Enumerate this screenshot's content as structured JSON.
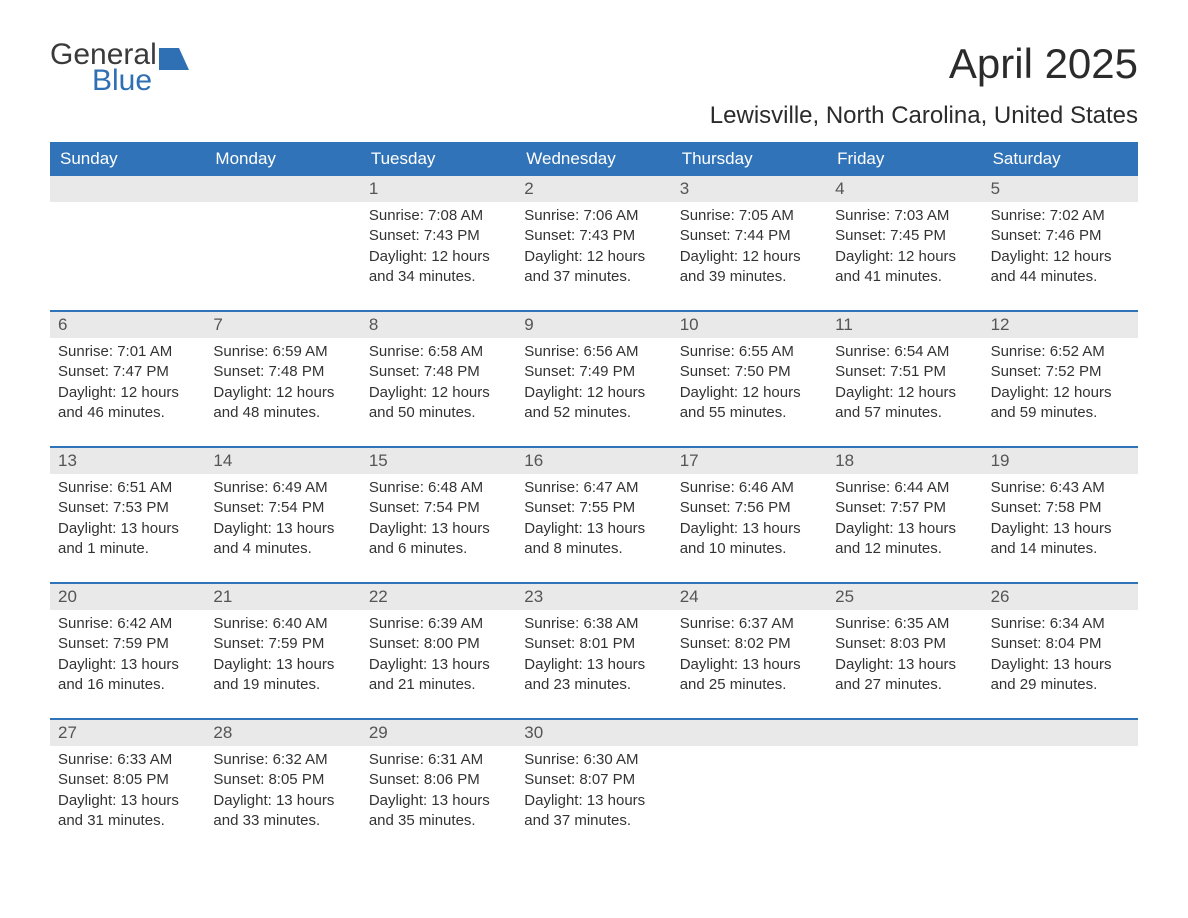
{
  "logo": {
    "line1": "General",
    "line2": "Blue",
    "mark_color": "#2f6fb3",
    "text_color": "#3a3a3a"
  },
  "title": "April 2025",
  "subtitle": "Lewisville, North Carolina, United States",
  "colors": {
    "header_bg": "#3173b8",
    "header_text": "#ffffff",
    "daynum_bg": "#e9e9e9",
    "daynum_text": "#555555",
    "body_text": "#333333",
    "rule": "#3173b8",
    "page_bg": "#ffffff"
  },
  "day_labels": [
    "Sunday",
    "Monday",
    "Tuesday",
    "Wednesday",
    "Thursday",
    "Friday",
    "Saturday"
  ],
  "weeks": [
    [
      {
        "n": "",
        "sr": "",
        "ss": "",
        "dl": ""
      },
      {
        "n": "",
        "sr": "",
        "ss": "",
        "dl": ""
      },
      {
        "n": "1",
        "sr": "Sunrise: 7:08 AM",
        "ss": "Sunset: 7:43 PM",
        "dl": "Daylight: 12 hours and 34 minutes."
      },
      {
        "n": "2",
        "sr": "Sunrise: 7:06 AM",
        "ss": "Sunset: 7:43 PM",
        "dl": "Daylight: 12 hours and 37 minutes."
      },
      {
        "n": "3",
        "sr": "Sunrise: 7:05 AM",
        "ss": "Sunset: 7:44 PM",
        "dl": "Daylight: 12 hours and 39 minutes."
      },
      {
        "n": "4",
        "sr": "Sunrise: 7:03 AM",
        "ss": "Sunset: 7:45 PM",
        "dl": "Daylight: 12 hours and 41 minutes."
      },
      {
        "n": "5",
        "sr": "Sunrise: 7:02 AM",
        "ss": "Sunset: 7:46 PM",
        "dl": "Daylight: 12 hours and 44 minutes."
      }
    ],
    [
      {
        "n": "6",
        "sr": "Sunrise: 7:01 AM",
        "ss": "Sunset: 7:47 PM",
        "dl": "Daylight: 12 hours and 46 minutes."
      },
      {
        "n": "7",
        "sr": "Sunrise: 6:59 AM",
        "ss": "Sunset: 7:48 PM",
        "dl": "Daylight: 12 hours and 48 minutes."
      },
      {
        "n": "8",
        "sr": "Sunrise: 6:58 AM",
        "ss": "Sunset: 7:48 PM",
        "dl": "Daylight: 12 hours and 50 minutes."
      },
      {
        "n": "9",
        "sr": "Sunrise: 6:56 AM",
        "ss": "Sunset: 7:49 PM",
        "dl": "Daylight: 12 hours and 52 minutes."
      },
      {
        "n": "10",
        "sr": "Sunrise: 6:55 AM",
        "ss": "Sunset: 7:50 PM",
        "dl": "Daylight: 12 hours and 55 minutes."
      },
      {
        "n": "11",
        "sr": "Sunrise: 6:54 AM",
        "ss": "Sunset: 7:51 PM",
        "dl": "Daylight: 12 hours and 57 minutes."
      },
      {
        "n": "12",
        "sr": "Sunrise: 6:52 AM",
        "ss": "Sunset: 7:52 PM",
        "dl": "Daylight: 12 hours and 59 minutes."
      }
    ],
    [
      {
        "n": "13",
        "sr": "Sunrise: 6:51 AM",
        "ss": "Sunset: 7:53 PM",
        "dl": "Daylight: 13 hours and 1 minute."
      },
      {
        "n": "14",
        "sr": "Sunrise: 6:49 AM",
        "ss": "Sunset: 7:54 PM",
        "dl": "Daylight: 13 hours and 4 minutes."
      },
      {
        "n": "15",
        "sr": "Sunrise: 6:48 AM",
        "ss": "Sunset: 7:54 PM",
        "dl": "Daylight: 13 hours and 6 minutes."
      },
      {
        "n": "16",
        "sr": "Sunrise: 6:47 AM",
        "ss": "Sunset: 7:55 PM",
        "dl": "Daylight: 13 hours and 8 minutes."
      },
      {
        "n": "17",
        "sr": "Sunrise: 6:46 AM",
        "ss": "Sunset: 7:56 PM",
        "dl": "Daylight: 13 hours and 10 minutes."
      },
      {
        "n": "18",
        "sr": "Sunrise: 6:44 AM",
        "ss": "Sunset: 7:57 PM",
        "dl": "Daylight: 13 hours and 12 minutes."
      },
      {
        "n": "19",
        "sr": "Sunrise: 6:43 AM",
        "ss": "Sunset: 7:58 PM",
        "dl": "Daylight: 13 hours and 14 minutes."
      }
    ],
    [
      {
        "n": "20",
        "sr": "Sunrise: 6:42 AM",
        "ss": "Sunset: 7:59 PM",
        "dl": "Daylight: 13 hours and 16 minutes."
      },
      {
        "n": "21",
        "sr": "Sunrise: 6:40 AM",
        "ss": "Sunset: 7:59 PM",
        "dl": "Daylight: 13 hours and 19 minutes."
      },
      {
        "n": "22",
        "sr": "Sunrise: 6:39 AM",
        "ss": "Sunset: 8:00 PM",
        "dl": "Daylight: 13 hours and 21 minutes."
      },
      {
        "n": "23",
        "sr": "Sunrise: 6:38 AM",
        "ss": "Sunset: 8:01 PM",
        "dl": "Daylight: 13 hours and 23 minutes."
      },
      {
        "n": "24",
        "sr": "Sunrise: 6:37 AM",
        "ss": "Sunset: 8:02 PM",
        "dl": "Daylight: 13 hours and 25 minutes."
      },
      {
        "n": "25",
        "sr": "Sunrise: 6:35 AM",
        "ss": "Sunset: 8:03 PM",
        "dl": "Daylight: 13 hours and 27 minutes."
      },
      {
        "n": "26",
        "sr": "Sunrise: 6:34 AM",
        "ss": "Sunset: 8:04 PM",
        "dl": "Daylight: 13 hours and 29 minutes."
      }
    ],
    [
      {
        "n": "27",
        "sr": "Sunrise: 6:33 AM",
        "ss": "Sunset: 8:05 PM",
        "dl": "Daylight: 13 hours and 31 minutes."
      },
      {
        "n": "28",
        "sr": "Sunrise: 6:32 AM",
        "ss": "Sunset: 8:05 PM",
        "dl": "Daylight: 13 hours and 33 minutes."
      },
      {
        "n": "29",
        "sr": "Sunrise: 6:31 AM",
        "ss": "Sunset: 8:06 PM",
        "dl": "Daylight: 13 hours and 35 minutes."
      },
      {
        "n": "30",
        "sr": "Sunrise: 6:30 AM",
        "ss": "Sunset: 8:07 PM",
        "dl": "Daylight: 13 hours and 37 minutes."
      },
      {
        "n": "",
        "sr": "",
        "ss": "",
        "dl": ""
      },
      {
        "n": "",
        "sr": "",
        "ss": "",
        "dl": ""
      },
      {
        "n": "",
        "sr": "",
        "ss": "",
        "dl": ""
      }
    ]
  ]
}
